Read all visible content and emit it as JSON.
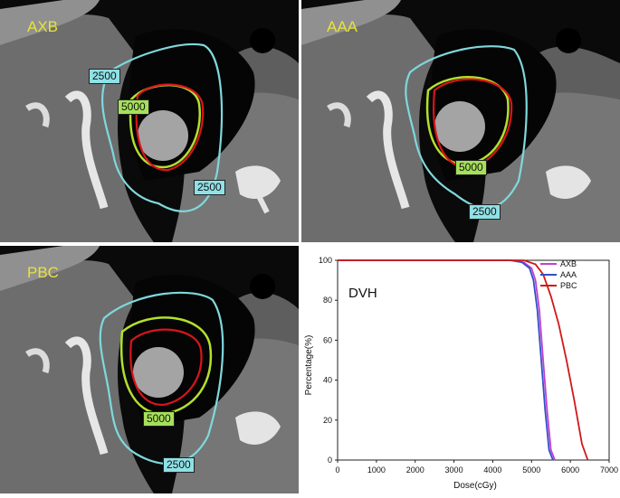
{
  "panels": [
    {
      "id": "axb",
      "label": "AXB",
      "iso_high": "5000",
      "iso_low_a": "2500",
      "iso_low_b": "2500"
    },
    {
      "id": "aaa",
      "label": "AAA",
      "iso_high": "5000",
      "iso_low_a": "2500"
    },
    {
      "id": "pbc",
      "label": "PBC",
      "iso_high": "5000",
      "iso_low_a": "2500"
    }
  ],
  "colors": {
    "iso_2500": "#7fd8dc",
    "iso_5000": "#b3e02c",
    "ptv": "#d8141c",
    "label": "#e8e23a"
  },
  "chart_data": {
    "type": "line",
    "title": "DVH",
    "xlabel": "Dose(cGy)",
    "ylabel": "Percentage(%)",
    "xlim": [
      0,
      7000
    ],
    "ylim": [
      0,
      100
    ],
    "xticks": [
      0,
      1000,
      2000,
      3000,
      4000,
      5000,
      6000,
      7000
    ],
    "yticks": [
      0,
      20,
      40,
      60,
      80,
      100
    ],
    "legend_position": "top-right",
    "series": [
      {
        "name": "AXB",
        "color": "#c040d0",
        "x": [
          0,
          4500,
          4800,
          5000,
          5100,
          5200,
          5300,
          5400,
          5500,
          5600
        ],
        "y": [
          100,
          100,
          99,
          96,
          90,
          75,
          50,
          25,
          5,
          0
        ]
      },
      {
        "name": "AAA",
        "color": "#3050c8",
        "x": [
          0,
          4450,
          4750,
          4950,
          5050,
          5150,
          5250,
          5350,
          5450,
          5550
        ],
        "y": [
          100,
          100,
          99,
          96,
          90,
          75,
          50,
          25,
          5,
          0
        ]
      },
      {
        "name": "PBC",
        "color": "#d01818",
        "x": [
          0,
          4800,
          5100,
          5300,
          5500,
          5700,
          5900,
          6100,
          6300,
          6450
        ],
        "y": [
          100,
          100,
          98,
          93,
          82,
          68,
          50,
          30,
          8,
          0
        ]
      }
    ]
  }
}
